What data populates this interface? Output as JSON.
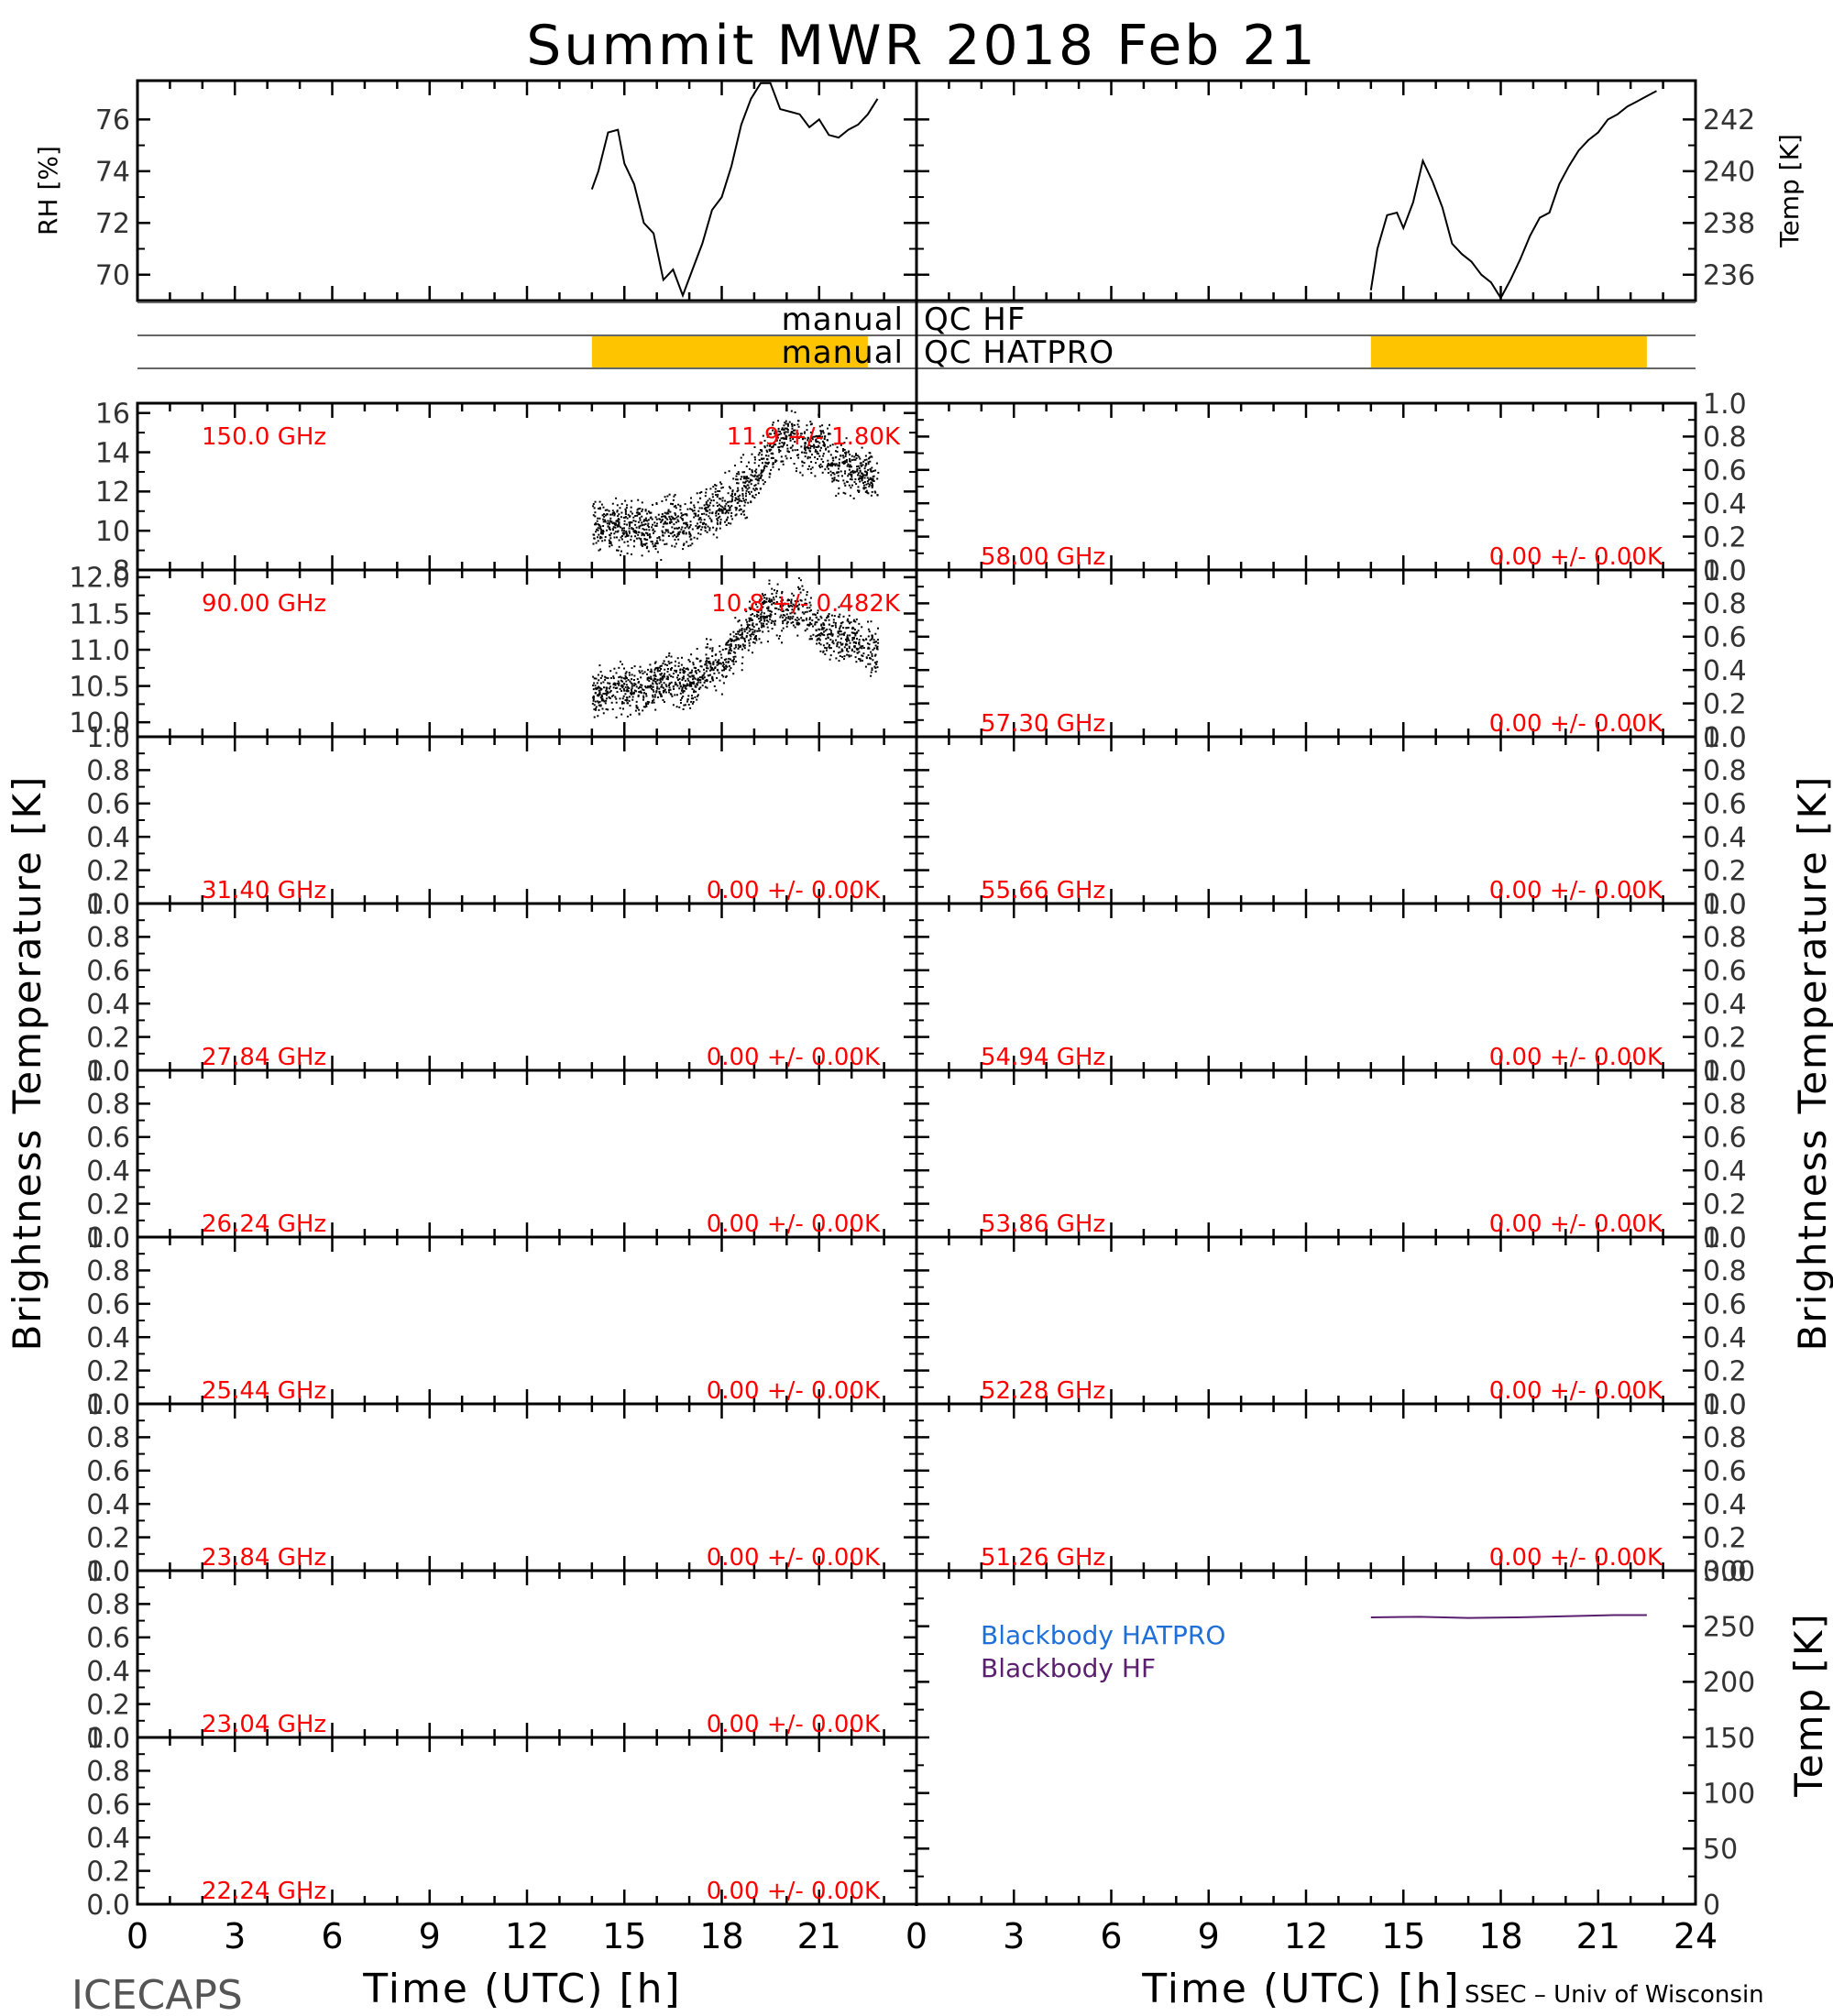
{
  "title": "Summit MWR 2018 Feb 21",
  "footer_left": "ICECAPS",
  "footer_right": "SSEC – Univ of Wisconsin",
  "colors": {
    "axis": "#000000",
    "label_red": "#ff0000",
    "qc_fill": "#ffc400",
    "bb_hatpro": "#1f6fd8",
    "bb_hf": "#5a1f6e"
  },
  "xaxis": {
    "label": "Time (UTC) [h]",
    "range": [
      0,
      24
    ],
    "ticks": [
      "0",
      "3",
      "6",
      "9",
      "12",
      "15",
      "18",
      "21",
      "24"
    ]
  },
  "ylabel_left": "Brightness Temperature [K]",
  "ylabel_right": "Brightness Temperature [K]",
  "chart_data": [
    {
      "type": "line",
      "id": "rh",
      "ylabel": "RH [%]",
      "ylim": [
        69,
        77.5
      ],
      "yticks": [
        "70",
        "72",
        "74",
        "76"
      ],
      "x": [
        14.0,
        14.2,
        14.5,
        14.8,
        15.0,
        15.3,
        15.6,
        15.9,
        16.2,
        16.5,
        16.8,
        17.1,
        17.4,
        17.7,
        18.0,
        18.3,
        18.6,
        18.9,
        19.2,
        19.5,
        19.8,
        20.1,
        20.4,
        20.7,
        21.0,
        21.3,
        21.6,
        21.9,
        22.2,
        22.5,
        22.8
      ],
      "y": [
        73.3,
        74.0,
        75.5,
        75.6,
        74.3,
        73.5,
        72.0,
        71.6,
        69.8,
        70.2,
        69.2,
        70.2,
        71.2,
        72.5,
        73.0,
        74.2,
        75.8,
        76.8,
        77.4,
        77.4,
        76.4,
        76.3,
        76.2,
        75.7,
        76.0,
        75.4,
        75.3,
        75.6,
        75.8,
        76.2,
        76.8
      ]
    },
    {
      "type": "line",
      "id": "temp",
      "ylabel": "Temp [K]",
      "ylim": [
        235,
        243.5
      ],
      "yticks": [
        "236",
        "238",
        "240",
        "242"
      ],
      "x": [
        14.0,
        14.2,
        14.5,
        14.8,
        15.0,
        15.3,
        15.6,
        15.9,
        16.2,
        16.5,
        16.8,
        17.1,
        17.4,
        17.7,
        18.0,
        18.3,
        18.6,
        18.9,
        19.2,
        19.5,
        19.8,
        20.1,
        20.4,
        20.7,
        21.0,
        21.3,
        21.6,
        21.9,
        22.2,
        22.5,
        22.8
      ],
      "y": [
        235.4,
        237.0,
        238.3,
        238.4,
        237.8,
        238.8,
        240.4,
        239.6,
        238.6,
        237.2,
        236.8,
        236.5,
        236.0,
        235.7,
        235.1,
        235.8,
        236.6,
        237.5,
        238.2,
        238.4,
        239.5,
        240.2,
        240.8,
        241.2,
        241.5,
        242.0,
        242.2,
        242.5,
        242.7,
        242.9,
        243.1
      ]
    },
    {
      "type": "bar",
      "id": "qc",
      "rows": [
        {
          "label": "manual QC HF",
          "intervals": []
        },
        {
          "label": "manual QC HATPRO",
          "intervals": [
            [
              14.0,
              22.5
            ]
          ]
        }
      ]
    }
  ],
  "channels_left": [
    {
      "freq": "150.0 GHz",
      "stat": "11.9 +/- 1.80K",
      "ylim": [
        8,
        16.5
      ],
      "yticks": [
        "8",
        "10",
        "12",
        "14",
        "16"
      ],
      "has_data": true,
      "x": [
        14.0,
        14.5,
        15.0,
        15.5,
        16.0,
        16.5,
        17.0,
        17.5,
        18.0,
        18.5,
        19.0,
        19.5,
        20.0,
        20.5,
        21.0,
        21.5,
        22.0,
        22.5,
        22.8
      ],
      "y": [
        10.5,
        10.2,
        10.3,
        10.2,
        10.0,
        10.6,
        10.2,
        11.0,
        11.2,
        12.0,
        12.8,
        14.0,
        15.0,
        14.2,
        14.5,
        13.5,
        13.2,
        12.8,
        12.5
      ],
      "spread": 1.3
    },
    {
      "freq": "90.00 GHz",
      "stat": "10.8 +/- 0.482K",
      "ylim": [
        9.8,
        12.1
      ],
      "yticks": [
        "10.0",
        "10.5",
        "11.0",
        "11.5",
        "12.0"
      ],
      "has_data": true,
      "x": [
        14.0,
        14.5,
        15.0,
        15.5,
        16.0,
        16.5,
        17.0,
        17.5,
        18.0,
        18.5,
        19.0,
        19.5,
        20.0,
        20.5,
        21.0,
        21.5,
        22.0,
        22.5,
        22.8
      ],
      "y": [
        10.4,
        10.4,
        10.5,
        10.4,
        10.6,
        10.6,
        10.5,
        10.8,
        10.8,
        11.1,
        11.4,
        11.6,
        11.5,
        11.6,
        11.3,
        11.2,
        11.2,
        11.0,
        11.0
      ],
      "spread": 0.33
    },
    {
      "freq": "31.40 GHz",
      "stat": "0.00 +/- 0.00K",
      "ylim": [
        0,
        1
      ],
      "yticks": [
        "0.0",
        "0.2",
        "0.4",
        "0.6",
        "0.8",
        "1.0"
      ],
      "has_data": false
    },
    {
      "freq": "27.84 GHz",
      "stat": "0.00 +/- 0.00K",
      "ylim": [
        0,
        1
      ],
      "yticks": [
        "0.0",
        "0.2",
        "0.4",
        "0.6",
        "0.8",
        "1.0"
      ],
      "has_data": false
    },
    {
      "freq": "26.24 GHz",
      "stat": "0.00 +/- 0.00K",
      "ylim": [
        0,
        1
      ],
      "yticks": [
        "0.0",
        "0.2",
        "0.4",
        "0.6",
        "0.8",
        "1.0"
      ],
      "has_data": false
    },
    {
      "freq": "25.44 GHz",
      "stat": "0.00 +/- 0.00K",
      "ylim": [
        0,
        1
      ],
      "yticks": [
        "0.0",
        "0.2",
        "0.4",
        "0.6",
        "0.8",
        "1.0"
      ],
      "has_data": false
    },
    {
      "freq": "23.84 GHz",
      "stat": "0.00 +/- 0.00K",
      "ylim": [
        0,
        1
      ],
      "yticks": [
        "0.0",
        "0.2",
        "0.4",
        "0.6",
        "0.8",
        "1.0"
      ],
      "has_data": false
    },
    {
      "freq": "23.04 GHz",
      "stat": "0.00 +/- 0.00K",
      "ylim": [
        0,
        1
      ],
      "yticks": [
        "0.0",
        "0.2",
        "0.4",
        "0.6",
        "0.8",
        "1.0"
      ],
      "has_data": false
    },
    {
      "freq": "22.24 GHz",
      "stat": "0.00 +/- 0.00K",
      "ylim": [
        0,
        1
      ],
      "yticks": [
        "0.0",
        "0.2",
        "0.4",
        "0.6",
        "0.8",
        "1.0"
      ],
      "has_data": false
    }
  ],
  "channels_right": [
    {
      "freq": "58.00 GHz",
      "stat": "0.00 +/- 0.00K",
      "ylim": [
        0,
        1
      ],
      "yticks": [
        "0.0",
        "0.2",
        "0.4",
        "0.6",
        "0.8",
        "1.0"
      ]
    },
    {
      "freq": "57.30 GHz",
      "stat": "0.00 +/- 0.00K",
      "ylim": [
        0,
        1
      ],
      "yticks": [
        "0.0",
        "0.2",
        "0.4",
        "0.6",
        "0.8",
        "1.0"
      ]
    },
    {
      "freq": "55.66 GHz",
      "stat": "0.00 +/- 0.00K",
      "ylim": [
        0,
        1
      ],
      "yticks": [
        "0.0",
        "0.2",
        "0.4",
        "0.6",
        "0.8",
        "1.0"
      ]
    },
    {
      "freq": "54.94 GHz",
      "stat": "0.00 +/- 0.00K",
      "ylim": [
        0,
        1
      ],
      "yticks": [
        "0.0",
        "0.2",
        "0.4",
        "0.6",
        "0.8",
        "1.0"
      ]
    },
    {
      "freq": "53.86 GHz",
      "stat": "0.00 +/- 0.00K",
      "ylim": [
        0,
        1
      ],
      "yticks": [
        "0.0",
        "0.2",
        "0.4",
        "0.6",
        "0.8",
        "1.0"
      ]
    },
    {
      "freq": "52.28 GHz",
      "stat": "0.00 +/- 0.00K",
      "ylim": [
        0,
        1
      ],
      "yticks": [
        "0.0",
        "0.2",
        "0.4",
        "0.6",
        "0.8",
        "1.0"
      ]
    },
    {
      "freq": "51.26 GHz",
      "stat": "0.00 +/- 0.00K",
      "ylim": [
        0,
        1
      ],
      "yticks": [
        "0.0",
        "0.2",
        "0.4",
        "0.6",
        "0.8",
        "1.0"
      ]
    }
  ],
  "blackbody": {
    "ylabel": "Temp [K]",
    "ylim": [
      0,
      300
    ],
    "yticks": [
      "0",
      "50",
      "100",
      "150",
      "200",
      "250",
      "300"
    ],
    "series": [
      {
        "name": "Blackbody HATPRO",
        "x": [
          14.0,
          22.5
        ],
        "y": [
          0,
          0
        ]
      },
      {
        "name": "Blackbody HF",
        "x": [
          14.0,
          15.5,
          17.0,
          18.5,
          20.0,
          21.5,
          22.5
        ],
        "y": [
          258,
          258.5,
          257.5,
          258,
          259,
          260,
          260
        ]
      }
    ]
  }
}
